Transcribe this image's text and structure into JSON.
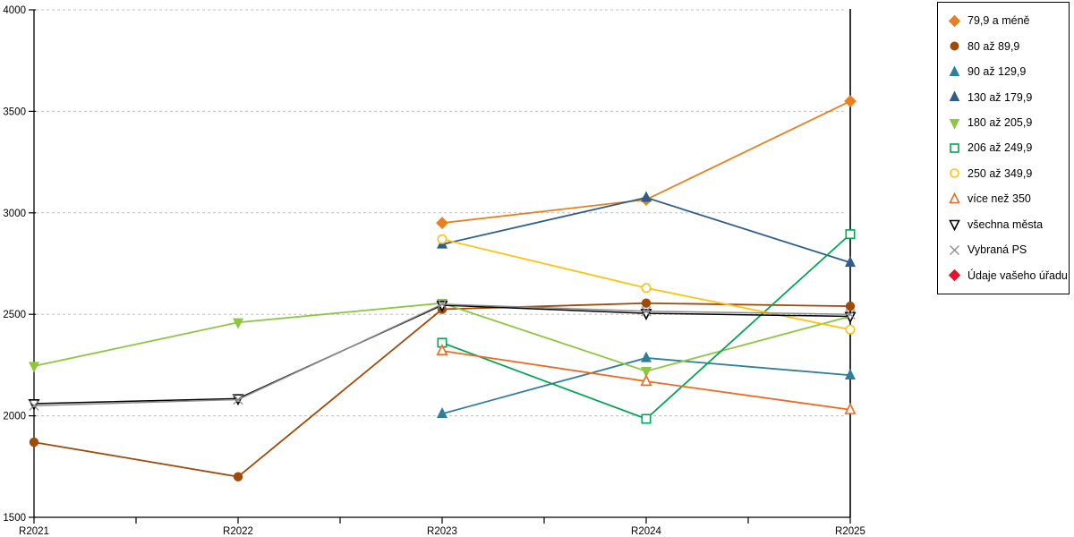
{
  "chart_data": {
    "type": "line",
    "title": "",
    "xlabel": "",
    "ylabel": "",
    "categories": [
      "R2021",
      "R2022",
      "R2023",
      "R2024",
      "R2025"
    ],
    "ylim": [
      1500,
      4000
    ],
    "yticks": [
      1500,
      2000,
      2500,
      3000,
      3500,
      4000
    ],
    "grid": "horizontal-dashed",
    "gridline_color": "#bfbfbf",
    "legend_position": "right",
    "series": [
      {
        "name": "79,9 a méně",
        "color": "#e8801e",
        "marker": "diamond",
        "fill": "filled",
        "values": [
          null,
          null,
          2950,
          3065,
          3550
        ]
      },
      {
        "name": "80 až 89,9",
        "color": "#a04a08",
        "marker": "circle",
        "fill": "filled",
        "values": [
          1870,
          1700,
          2525,
          2555,
          2540
        ]
      },
      {
        "name": "90 až 129,9",
        "color": "#2e7f9e",
        "marker": "triangle-up",
        "fill": "filled",
        "values": [
          null,
          null,
          2010,
          2285,
          2200
        ]
      },
      {
        "name": "130 až 179,9",
        "color": "#2f5e8c",
        "marker": "triangle-up",
        "fill": "filled",
        "values": [
          null,
          null,
          2845,
          3075,
          2755
        ]
      },
      {
        "name": "180 až 205,9",
        "color": "#8dc63f",
        "marker": "triangle-down",
        "fill": "filled",
        "values": [
          2245,
          2460,
          2555,
          2220,
          2490
        ]
      },
      {
        "name": "206 až 249,9",
        "color": "#00a651",
        "marker": "square",
        "fill": "open",
        "values": [
          null,
          null,
          2360,
          1985,
          2895
        ]
      },
      {
        "name": "250 až 349,9",
        "color": "#ffc20e",
        "marker": "circle",
        "fill": "open",
        "values": [
          null,
          null,
          2870,
          2630,
          2425
        ]
      },
      {
        "name": "více než 350",
        "color": "#ed6b21",
        "marker": "triangle-up",
        "fill": "open",
        "values": [
          null,
          null,
          2320,
          2170,
          2030
        ]
      },
      {
        "name": "všechna města",
        "color": "#000000",
        "marker": "triangle-down",
        "fill": "open",
        "values": [
          2060,
          2085,
          2545,
          2505,
          2490
        ]
      },
      {
        "name": "Vybraná PS",
        "color": "#8c8c8c",
        "marker": "x",
        "fill": "open",
        "values": [
          2050,
          2080,
          2550,
          2515,
          2500
        ]
      },
      {
        "name": "Údaje vašeho úřadu",
        "color": "#e8112d",
        "marker": "diamond",
        "fill": "filled",
        "values": [
          null,
          null,
          null,
          null,
          null
        ]
      }
    ]
  }
}
